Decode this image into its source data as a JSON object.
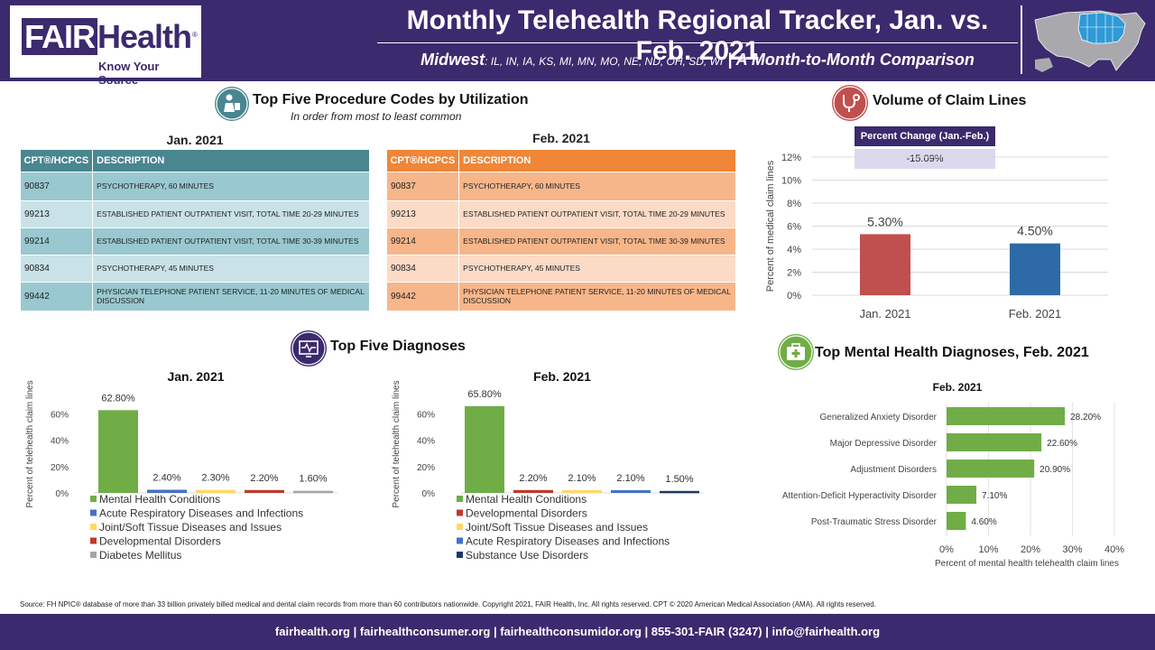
{
  "header": {
    "logo_word": "FAIR",
    "logo_word2": "Health",
    "logo_tagline": "Know Your Source",
    "title": "Monthly Telehealth Regional Tracker, Jan. vs. Feb. 2021",
    "region": "Midwest",
    "states": ": IL, IN, IA, KS, MI, MN, MO, NE, ND, OH, SD, WI",
    "comparison": " | A Month-to-Month Comparison"
  },
  "procedures": {
    "title": "Top Five Procedure Codes by Utilization",
    "note": "In order from most to least common",
    "col_code": "CPT®/HCPCS",
    "col_desc": "DESCRIPTION",
    "jan_title": "Jan. 2021",
    "feb_title": "Feb. 2021",
    "jan_rows": [
      {
        "code": "90837",
        "desc": "PSYCHOTHERAPY, 60 MINUTES"
      },
      {
        "code": "99213",
        "desc": "ESTABLISHED PATIENT OUTPATIENT VISIT, TOTAL TIME 20-29 MINUTES"
      },
      {
        "code": "99214",
        "desc": "ESTABLISHED PATIENT OUTPATIENT VISIT, TOTAL TIME 30-39 MINUTES"
      },
      {
        "code": "90834",
        "desc": "PSYCHOTHERAPY, 45 MINUTES"
      },
      {
        "code": "99442",
        "desc": "PHYSICIAN TELEPHONE PATIENT SERVICE, 11-20 MINUTES OF MEDICAL DISCUSSION"
      }
    ],
    "feb_rows": [
      {
        "code": "90837",
        "desc": "PSYCHOTHERAPY, 60 MINUTES"
      },
      {
        "code": "99213",
        "desc": "ESTABLISHED PATIENT OUTPATIENT VISIT, TOTAL TIME 20-29 MINUTES"
      },
      {
        "code": "99214",
        "desc": "ESTABLISHED PATIENT OUTPATIENT VISIT, TOTAL TIME 30-39 MINUTES"
      },
      {
        "code": "90834",
        "desc": "PSYCHOTHERAPY, 45 MINUTES"
      },
      {
        "code": "99442",
        "desc": "PHYSICIAN TELEPHONE PATIENT SERVICE, 11-20 MINUTES OF MEDICAL DISCUSSION"
      }
    ]
  },
  "volume": {
    "title": "Volume of Claim Lines",
    "pct_change_label": "Percent Change (Jan.-Feb.)",
    "pct_change_value": "-15.09%"
  },
  "diagnoses": {
    "title": "Top Five Diagnoses",
    "jan_title": "Jan. 2021",
    "feb_title": "Feb. 2021"
  },
  "mental": {
    "title": "Top Mental Health Diagnoses, Feb. 2021",
    "chart_title": "Feb. 2021"
  },
  "source": "Source: FH NPIC® database of more than 33 billion privately billed medical and dental claim records from more than 60 contributors nationwide. Copyright 2021, FAIR Health, Inc. All rights reserved. CPT © 2020 American Medical Association (AMA). All rights reserved.",
  "footer": "fairhealth.org  |  fairhealthconsumer.org  |  fairhealthconsumidor.org  |  855-301-FAIR (3247)  |  info@fairhealth.org",
  "colors": {
    "purple": "#3b2a6d",
    "teal": "#4a868f",
    "orange": "#ef8638",
    "green": "#70ad47",
    "blue": "#4472c4",
    "yellow": "#ffd966",
    "red": "#c0392b",
    "gray": "#a5a5a5",
    "navy": "#1f3864"
  },
  "chart_data": [
    {
      "id": "volume",
      "type": "bar",
      "categories": [
        "Jan. 2021",
        "Feb. 2021"
      ],
      "values": [
        5.3,
        4.5
      ],
      "data_labels": [
        "5.30%",
        "4.50%"
      ],
      "colors": [
        "#c0504d",
        "#2e6aa6"
      ],
      "ylabel": "Percent of medical claim lines",
      "ylim": [
        0,
        12
      ],
      "yticks": [
        "0%",
        "2%",
        "4%",
        "6%",
        "8%",
        "10%",
        "12%"
      ],
      "grid": true
    },
    {
      "id": "diag-jan",
      "type": "bar",
      "title": "Jan. 2021",
      "ylabel": "Percent of telehealth claim lines",
      "ylim": [
        0,
        70
      ],
      "yticks": [
        "0%",
        "20%",
        "40%",
        "60%"
      ],
      "series": [
        {
          "name": "Mental Health Conditions",
          "value": 62.8,
          "label": "62.80%",
          "color": "#70ad47"
        },
        {
          "name": "Acute Respiratory Diseases and Infections",
          "value": 2.4,
          "label": "2.40%",
          "color": "#4472c4"
        },
        {
          "name": "Joint/Soft Tissue Diseases and Issues",
          "value": 2.3,
          "label": "2.30%",
          "color": "#ffd966"
        },
        {
          "name": "Developmental Disorders",
          "value": 2.2,
          "label": "2.20%",
          "color": "#c0392b"
        },
        {
          "name": "Diabetes Mellitus",
          "value": 1.6,
          "label": "1.60%",
          "color": "#a5a5a5"
        }
      ],
      "legend": "bottom"
    },
    {
      "id": "diag-feb",
      "type": "bar",
      "title": "Feb. 2021",
      "ylabel": "Percent of telehealth claim lines",
      "ylim": [
        0,
        70
      ],
      "yticks": [
        "0%",
        "20%",
        "40%",
        "60%"
      ],
      "series": [
        {
          "name": "Mental Health Conditions",
          "value": 65.8,
          "label": "65.80%",
          "color": "#70ad47"
        },
        {
          "name": "Developmental Disorders",
          "value": 2.2,
          "label": "2.20%",
          "color": "#c0392b"
        },
        {
          "name": "Joint/Soft Tissue Diseases and Issues",
          "value": 2.1,
          "label": "2.10%",
          "color": "#ffd966"
        },
        {
          "name": "Acute Respiratory Diseases and Infections",
          "value": 2.1,
          "label": "2.10%",
          "color": "#4472c4"
        },
        {
          "name": "Substance Use Disorders",
          "value": 1.5,
          "label": "1.50%",
          "color": "#1f3864"
        }
      ],
      "legend": "bottom"
    },
    {
      "id": "mental",
      "type": "bar",
      "orientation": "horizontal",
      "title": "Feb. 2021",
      "categories": [
        "Generalized Anxiety Disorder",
        "Major Depressive Disorder",
        "Adjustment Disorders",
        "Attention-Deficit Hyperactivity Disorder",
        "Post-Traumatic Stress Disorder"
      ],
      "values": [
        28.2,
        22.6,
        20.9,
        7.1,
        4.6
      ],
      "data_labels": [
        "28.20%",
        "22.60%",
        "20.90%",
        "7.10%",
        "4.60%"
      ],
      "color": "#70ad47",
      "xlabel": "Percent of mental health telehealth claim lines",
      "xlim": [
        0,
        40
      ],
      "xticks": [
        "0%",
        "10%",
        "20%",
        "30%",
        "40%"
      ],
      "grid": true
    }
  ]
}
